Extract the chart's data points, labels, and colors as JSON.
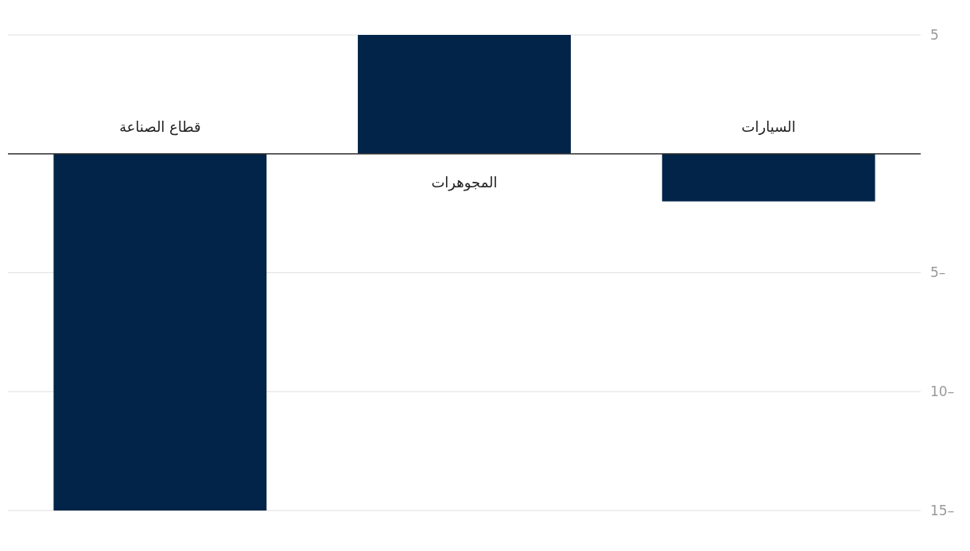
{
  "chart_data": {
    "type": "bar",
    "categories": [
      "قطاع الصناعة",
      "المجوهرات",
      "السيارات"
    ],
    "values": [
      -15,
      5,
      -2
    ],
    "color": "#022448",
    "ylim": [
      -15,
      5
    ],
    "yticks": [
      {
        "value": -15,
        "label": "15–"
      },
      {
        "value": -10,
        "label": "10–"
      },
      {
        "value": -5,
        "label": "5–"
      },
      {
        "value": 0,
        "label": null
      },
      5
    ],
    "grid": "y"
  }
}
